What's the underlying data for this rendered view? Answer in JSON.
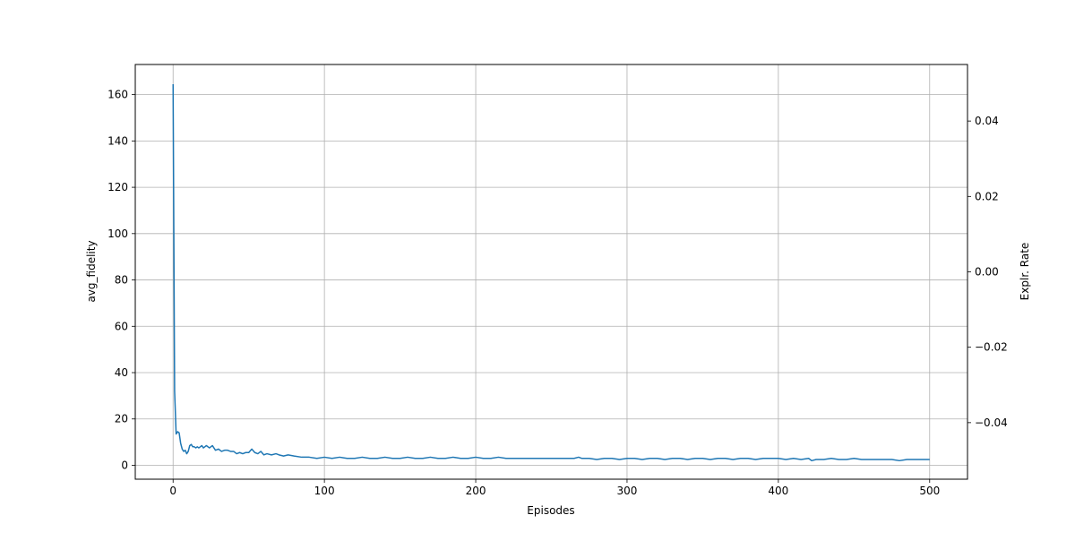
{
  "chart_data": {
    "type": "line",
    "xlabel": "Episodes",
    "ylabel": "avg_fidelity",
    "ylabel_right": "Explr. Rate",
    "xlim": [
      -25,
      525
    ],
    "ylim": [
      -6.0,
      173.0
    ],
    "ylim_right": [
      -0.055,
      0.055
    ],
    "x_ticks": [
      0,
      100,
      200,
      300,
      400,
      500
    ],
    "y_ticks": [
      0,
      20,
      40,
      60,
      80,
      100,
      120,
      140,
      160
    ],
    "y_ticks_right": [
      -0.04,
      -0.02,
      0.0,
      0.02,
      0.04
    ],
    "y_tick_labels_right": [
      "−0.04",
      "−0.02",
      "0.00",
      "0.02",
      "0.04"
    ],
    "grid": true,
    "series": [
      {
        "color": "#1f77b4",
        "x": [
          0,
          1,
          2,
          3,
          4,
          5,
          6,
          7,
          8,
          9,
          10,
          11,
          12,
          13,
          14,
          15,
          16,
          17,
          18,
          19,
          20,
          22,
          24,
          26,
          28,
          30,
          32,
          34,
          36,
          38,
          40,
          42,
          44,
          46,
          48,
          50,
          52,
          54,
          56,
          58,
          60,
          62,
          65,
          68,
          70,
          73,
          76,
          80,
          85,
          90,
          95,
          100,
          105,
          110,
          115,
          120,
          125,
          130,
          135,
          140,
          145,
          150,
          155,
          160,
          165,
          170,
          175,
          180,
          185,
          190,
          195,
          200,
          205,
          210,
          215,
          220,
          225,
          230,
          235,
          240,
          245,
          250,
          255,
          260,
          265,
          268,
          270,
          275,
          280,
          285,
          290,
          295,
          300,
          305,
          310,
          315,
          320,
          325,
          330,
          335,
          340,
          345,
          350,
          355,
          360,
          365,
          370,
          375,
          380,
          385,
          390,
          395,
          400,
          405,
          410,
          415,
          420,
          422,
          425,
          430,
          435,
          440,
          445,
          450,
          455,
          460,
          465,
          470,
          475,
          480,
          485,
          490,
          495,
          500
        ],
        "values": [
          164.5,
          32,
          13.5,
          14.5,
          14.0,
          9.5,
          7.0,
          6.0,
          6.5,
          5.0,
          6.0,
          8.5,
          9.0,
          8.0,
          8.0,
          7.5,
          8.0,
          7.5,
          8.0,
          8.5,
          7.5,
          8.5,
          7.5,
          8.5,
          6.5,
          7.0,
          6.0,
          6.5,
          6.5,
          6.0,
          6.0,
          5.0,
          5.5,
          5.0,
          5.5,
          5.5,
          7.0,
          5.5,
          5.0,
          6.0,
          4.5,
          5.0,
          4.5,
          5.0,
          4.5,
          4.0,
          4.5,
          4.0,
          3.5,
          3.5,
          3.0,
          3.5,
          3.0,
          3.5,
          3.0,
          3.0,
          3.5,
          3.0,
          3.0,
          3.5,
          3.0,
          3.0,
          3.5,
          3.0,
          3.0,
          3.5,
          3.0,
          3.0,
          3.5,
          3.0,
          3.0,
          3.5,
          3.0,
          3.0,
          3.5,
          3.0,
          3.0,
          3.0,
          3.0,
          3.0,
          3.0,
          3.0,
          3.0,
          3.0,
          3.0,
          3.5,
          3.0,
          3.0,
          2.5,
          3.0,
          3.0,
          2.5,
          3.0,
          3.0,
          2.5,
          3.0,
          3.0,
          2.5,
          3.0,
          3.0,
          2.5,
          3.0,
          3.0,
          2.5,
          3.0,
          3.0,
          2.5,
          3.0,
          3.0,
          2.5,
          3.0,
          3.0,
          3.0,
          2.5,
          3.0,
          2.5,
          3.0,
          2.0,
          2.5,
          2.5,
          3.0,
          2.5,
          2.5,
          3.0,
          2.5,
          2.5,
          2.5,
          2.5,
          2.5,
          2.0,
          2.5,
          2.5,
          2.5,
          2.5
        ]
      }
    ]
  }
}
